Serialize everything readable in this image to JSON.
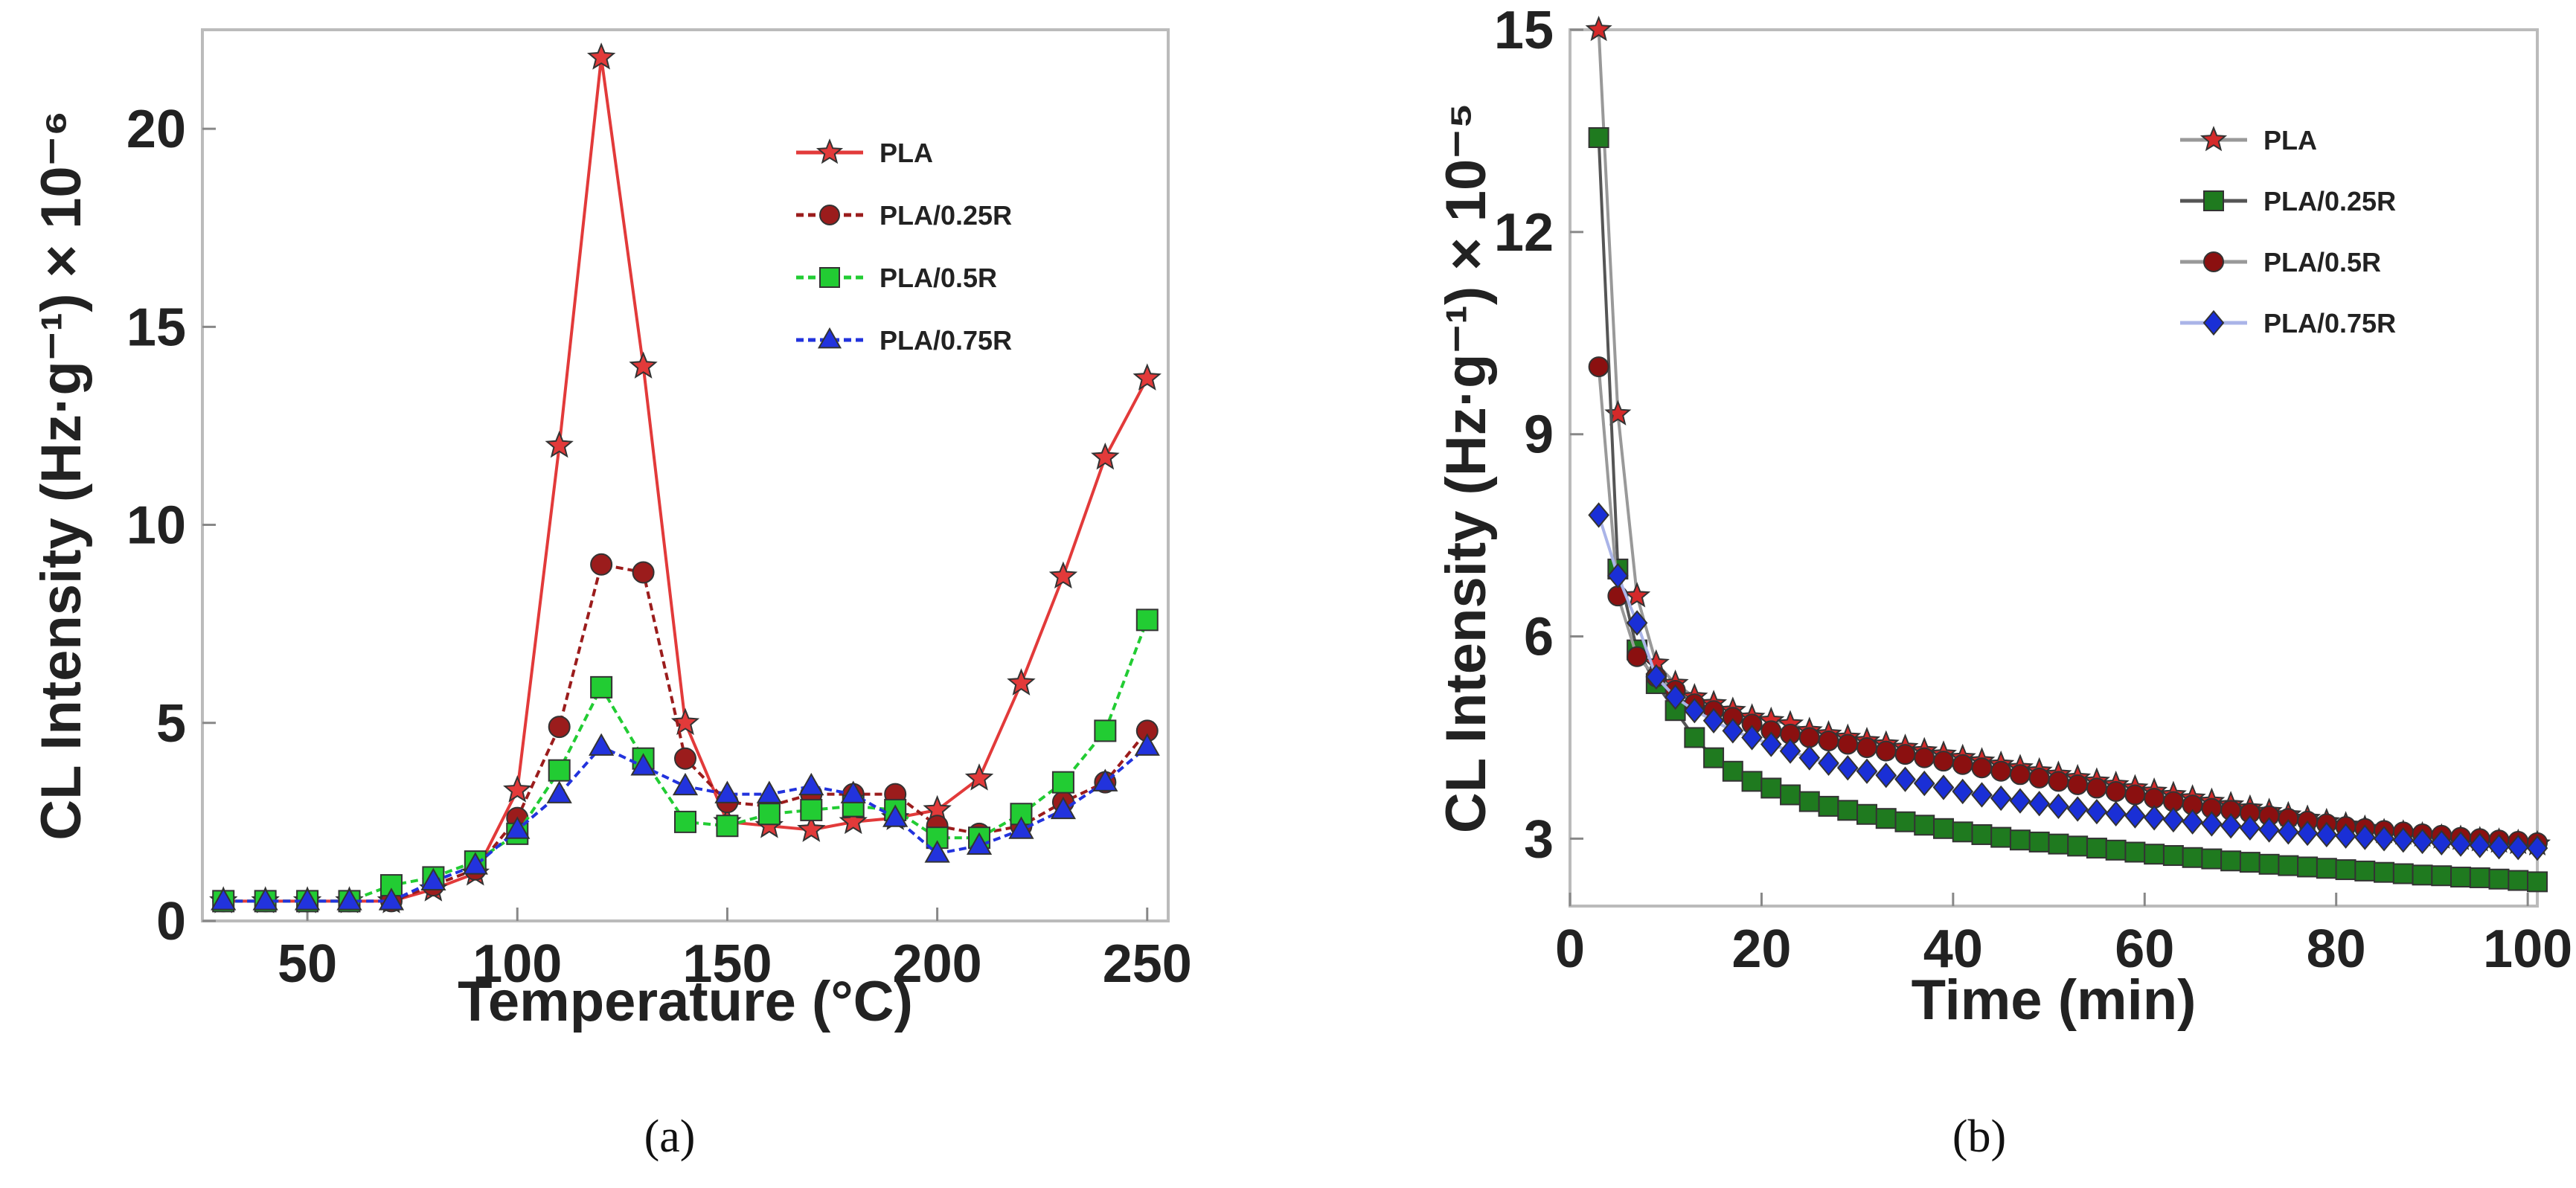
{
  "chart_data": [
    {
      "type": "line",
      "panel": "a",
      "xlabel": "Temperature (°C)",
      "ylabel": "CL Intensity (Hz·g⁻¹) × 10⁻⁶",
      "xlim": [
        25,
        255
      ],
      "ylim": [
        0,
        22.5
      ],
      "xticks": [
        50,
        100,
        150,
        200,
        250
      ],
      "yticks": [
        0,
        5,
        10,
        15,
        20
      ],
      "caption": "(a)",
      "legend_position": "top-right",
      "x": [
        30,
        40,
        50,
        60,
        70,
        80,
        90,
        100,
        110,
        120,
        130,
        140,
        150,
        160,
        170,
        180,
        190,
        200,
        210,
        220,
        230,
        240,
        250
      ],
      "series": [
        {
          "name": "PLA",
          "color": "#e23a3a",
          "marker": "star",
          "dash": "",
          "values": [
            0.5,
            0.5,
            0.5,
            0.5,
            0.5,
            0.8,
            1.2,
            3.3,
            12.0,
            21.8,
            14.0,
            5.0,
            2.5,
            2.4,
            2.3,
            2.5,
            2.6,
            2.8,
            3.6,
            6.0,
            8.7,
            11.7,
            13.7
          ]
        },
        {
          "name": "PLA/0.25R",
          "color": "#9b1c1c",
          "marker": "circle",
          "dash": "10,6",
          "values": [
            0.5,
            0.5,
            0.5,
            0.5,
            0.5,
            0.9,
            1.3,
            2.6,
            4.9,
            9.0,
            8.8,
            4.1,
            3.0,
            2.9,
            3.2,
            3.2,
            3.2,
            2.4,
            2.2,
            2.4,
            3.0,
            3.5,
            4.8
          ]
        },
        {
          "name": "PLA/0.5R",
          "color": "#22cc33",
          "marker": "square",
          "dash": "10,6",
          "values": [
            0.5,
            0.5,
            0.5,
            0.5,
            0.9,
            1.1,
            1.5,
            2.2,
            3.8,
            5.9,
            4.1,
            2.5,
            2.4,
            2.7,
            2.8,
            2.9,
            2.8,
            2.1,
            2.1,
            2.7,
            3.5,
            4.8,
            7.6
          ]
        },
        {
          "name": "PLA/0.75R",
          "color": "#2233dd",
          "marker": "triangle",
          "dash": "10,6",
          "values": [
            0.5,
            0.5,
            0.5,
            0.5,
            0.5,
            1.0,
            1.4,
            2.3,
            3.2,
            4.4,
            3.9,
            3.4,
            3.2,
            3.2,
            3.4,
            3.2,
            2.6,
            1.7,
            1.9,
            2.3,
            2.8,
            3.5,
            4.4
          ]
        }
      ]
    },
    {
      "type": "line",
      "panel": "b",
      "xlabel": "Time (min)",
      "ylabel": "CL Intensity (Hz·g⁻¹) × 10⁻⁵",
      "xlim": [
        0,
        101
      ],
      "ylim": [
        2.0,
        15.0
      ],
      "xticks": [
        0,
        20,
        40,
        60,
        80,
        100
      ],
      "yticks": [
        3,
        6,
        9,
        12,
        15
      ],
      "caption": "(b)",
      "legend_position": "top-right",
      "x": [
        3,
        5,
        7,
        9,
        11,
        13,
        15,
        17,
        19,
        21,
        23,
        25,
        27,
        29,
        31,
        33,
        35,
        37,
        39,
        41,
        43,
        45,
        47,
        49,
        51,
        53,
        55,
        57,
        59,
        61,
        63,
        65,
        67,
        69,
        71,
        73,
        75,
        77,
        79,
        81,
        83,
        85,
        87,
        89,
        91,
        93,
        95,
        97,
        99,
        101
      ],
      "series": [
        {
          "name": "PLA",
          "color": "#d42a2a",
          "line_color": "#999999",
          "marker": "star",
          "values": [
            15.0,
            9.3,
            6.6,
            5.6,
            5.3,
            5.1,
            5.0,
            4.9,
            4.8,
            4.75,
            4.7,
            4.6,
            4.55,
            4.5,
            4.45,
            4.4,
            4.35,
            4.3,
            4.25,
            4.2,
            4.15,
            4.1,
            4.05,
            4.0,
            3.95,
            3.9,
            3.85,
            3.8,
            3.75,
            3.7,
            3.65,
            3.6,
            3.55,
            3.5,
            3.45,
            3.4,
            3.35,
            3.3,
            3.25,
            3.2,
            3.15,
            3.1,
            3.08,
            3.05,
            3.02,
            3.0,
            2.98,
            2.96,
            2.94,
            2.92
          ]
        },
        {
          "name": "PLA/0.25R",
          "color": "#1f7a1f",
          "line_color": "#555555",
          "marker": "square",
          "values": [
            13.4,
            7.0,
            5.8,
            5.3,
            4.9,
            4.5,
            4.2,
            4.0,
            3.85,
            3.75,
            3.65,
            3.55,
            3.48,
            3.42,
            3.36,
            3.3,
            3.25,
            3.2,
            3.15,
            3.1,
            3.06,
            3.02,
            2.98,
            2.95,
            2.92,
            2.89,
            2.86,
            2.83,
            2.8,
            2.77,
            2.75,
            2.72,
            2.7,
            2.67,
            2.65,
            2.62,
            2.6,
            2.58,
            2.56,
            2.54,
            2.52,
            2.5,
            2.48,
            2.46,
            2.45,
            2.43,
            2.42,
            2.4,
            2.38,
            2.36
          ]
        },
        {
          "name": "PLA/0.5R",
          "color": "#8b1010",
          "line_color": "#999999",
          "marker": "circle",
          "values": [
            10.0,
            6.6,
            5.7,
            5.4,
            5.2,
            5.0,
            4.9,
            4.8,
            4.7,
            4.6,
            4.55,
            4.5,
            4.45,
            4.4,
            4.35,
            4.3,
            4.25,
            4.2,
            4.15,
            4.1,
            4.05,
            4.0,
            3.95,
            3.9,
            3.85,
            3.8,
            3.75,
            3.7,
            3.65,
            3.6,
            3.55,
            3.5,
            3.45,
            3.42,
            3.38,
            3.34,
            3.3,
            3.26,
            3.22,
            3.18,
            3.15,
            3.12,
            3.1,
            3.07,
            3.05,
            3.02,
            3.0,
            2.98,
            2.96,
            2.94
          ]
        },
        {
          "name": "PLA/0.75R",
          "color": "#1a2fd6",
          "line_color": "#aab4e8",
          "marker": "diamond",
          "values": [
            7.8,
            6.9,
            6.2,
            5.4,
            5.1,
            4.9,
            4.75,
            4.6,
            4.5,
            4.4,
            4.3,
            4.2,
            4.12,
            4.05,
            4.0,
            3.94,
            3.88,
            3.82,
            3.76,
            3.7,
            3.65,
            3.6,
            3.56,
            3.52,
            3.48,
            3.44,
            3.4,
            3.37,
            3.34,
            3.31,
            3.28,
            3.25,
            3.22,
            3.19,
            3.16,
            3.13,
            3.1,
            3.08,
            3.06,
            3.04,
            3.02,
            3.0,
            2.98,
            2.96,
            2.94,
            2.92,
            2.9,
            2.88,
            2.87,
            2.86
          ]
        }
      ]
    }
  ]
}
